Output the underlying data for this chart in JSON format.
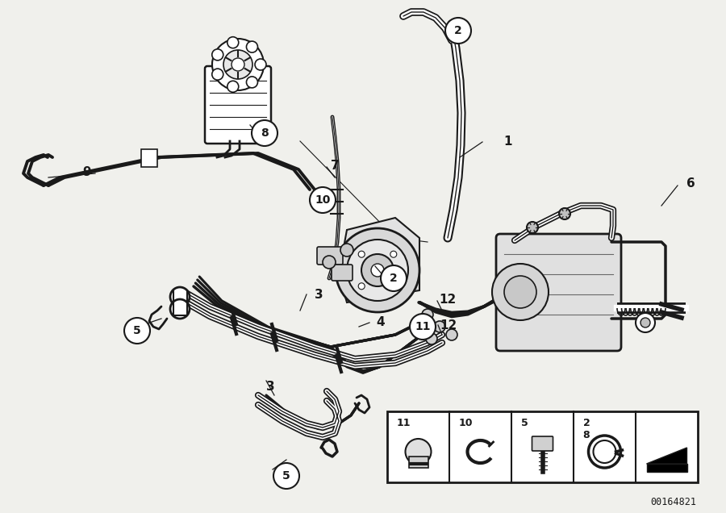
{
  "bg_color": "#f0f0ec",
  "line_color": "#1a1a1a",
  "part_number": "00164821",
  "fig_w": 9.0,
  "fig_h": 6.36,
  "dpi": 100
}
